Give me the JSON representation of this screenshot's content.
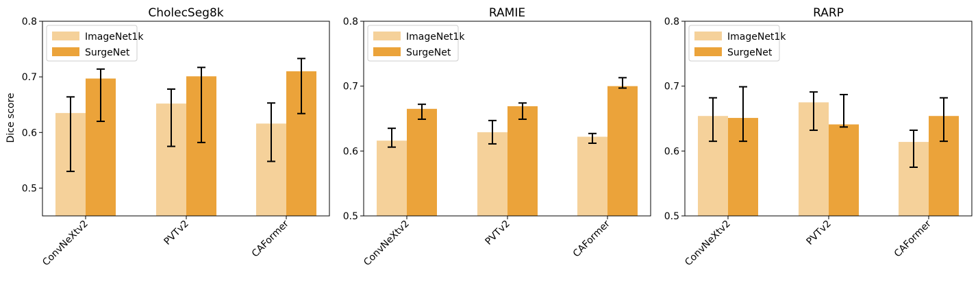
{
  "colors": {
    "imagenet": "#f5d19a",
    "surgenet": "#eba33a",
    "error": "#000000"
  },
  "ylabel": "Dice score",
  "chart_data": [
    {
      "type": "bar",
      "title": "CholecSeg8k",
      "ylabel": "Dice score",
      "ylim": [
        0.45,
        0.8
      ],
      "yticks": [
        "0.5",
        "0.6",
        "0.7",
        "0.8"
      ],
      "categories": [
        "ConvNeXtv2",
        "PVTv2",
        "CAFormer"
      ],
      "legend": {
        "placement": "top-left",
        "entries": [
          "ImageNet1k",
          "SurgeNet"
        ]
      },
      "series": [
        {
          "name": "ImageNet1k",
          "values": [
            0.635,
            0.652,
            0.616
          ],
          "err_low": [
            0.53,
            0.575,
            0.548
          ],
          "err_high": [
            0.664,
            0.678,
            0.653
          ]
        },
        {
          "name": "SurgeNet",
          "values": [
            0.697,
            0.701,
            0.71
          ],
          "err_low": [
            0.62,
            0.582,
            0.634
          ],
          "err_high": [
            0.714,
            0.717,
            0.733
          ]
        }
      ]
    },
    {
      "type": "bar",
      "title": "RAMIE",
      "ylabel": "",
      "ylim": [
        0.5,
        0.8
      ],
      "yticks": [
        "0.5",
        "0.6",
        "0.7",
        "0.8"
      ],
      "categories": [
        "ConvNeXtv2",
        "PVTv2",
        "CAFormer"
      ],
      "legend": {
        "placement": "top-left",
        "entries": [
          "ImageNet1k",
          "SurgeNet"
        ]
      },
      "series": [
        {
          "name": "ImageNet1k",
          "values": [
            0.616,
            0.629,
            0.622
          ],
          "err_low": [
            0.606,
            0.611,
            0.612
          ],
          "err_high": [
            0.635,
            0.647,
            0.627
          ]
        },
        {
          "name": "SurgeNet",
          "values": [
            0.665,
            0.669,
            0.7
          ],
          "err_low": [
            0.649,
            0.649,
            0.697
          ],
          "err_high": [
            0.672,
            0.674,
            0.713
          ]
        }
      ]
    },
    {
      "type": "bar",
      "title": "RARP",
      "ylabel": "",
      "ylim": [
        0.5,
        0.8
      ],
      "yticks": [
        "0.5",
        "0.6",
        "0.7",
        "0.8"
      ],
      "categories": [
        "ConvNeXtv2",
        "PVTv2",
        "CAFormer"
      ],
      "legend": {
        "placement": "top-left",
        "entries": [
          "ImageNet1k",
          "SurgeNet"
        ]
      },
      "series": [
        {
          "name": "ImageNet1k",
          "values": [
            0.654,
            0.675,
            0.614
          ],
          "err_low": [
            0.615,
            0.632,
            0.575
          ],
          "err_high": [
            0.682,
            0.691,
            0.632
          ]
        },
        {
          "name": "SurgeNet",
          "values": [
            0.651,
            0.641,
            0.654
          ],
          "err_low": [
            0.615,
            0.637,
            0.615
          ],
          "err_high": [
            0.699,
            0.687,
            0.682
          ]
        }
      ]
    }
  ]
}
